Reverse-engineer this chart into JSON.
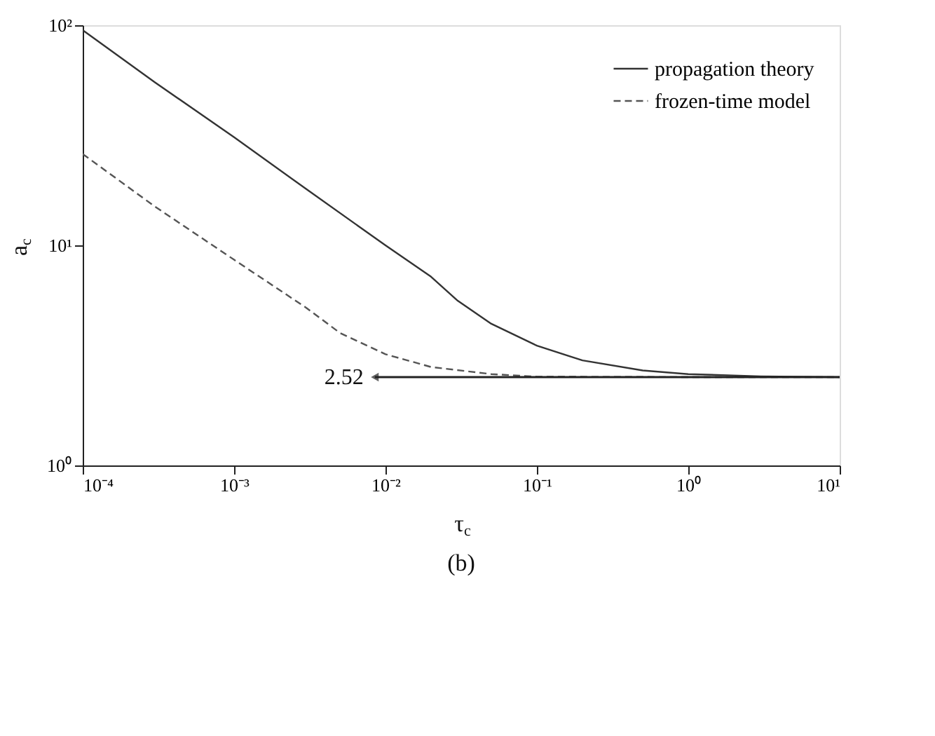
{
  "chart_data": {
    "type": "line",
    "xlabel": "τ$_{c}$",
    "ylabel": "a$_{c}$",
    "log": "xy",
    "xlim": [
      0.0001,
      10
    ],
    "ylim": [
      1,
      100
    ],
    "xticks": [
      {
        "value": 0.0001,
        "label": "10⁻⁴"
      },
      {
        "value": 0.001,
        "label": "10⁻³"
      },
      {
        "value": 0.01,
        "label": "10⁻²"
      },
      {
        "value": 0.1,
        "label": "10⁻¹"
      },
      {
        "value": 1,
        "label": "10⁰"
      },
      {
        "value": 10,
        "label": "10¹"
      }
    ],
    "yticks": [
      {
        "value": 1,
        "label": "10⁰"
      },
      {
        "value": 10,
        "label": "10¹"
      },
      {
        "value": 100,
        "label": "10²"
      }
    ],
    "legend": "top right",
    "grid": false,
    "series": [
      {
        "name": "propagation theory",
        "color": "#333333",
        "line_style": "solid",
        "x": [
          0.0001,
          0.0003,
          0.001,
          0.003,
          0.01,
          0.02,
          0.03,
          0.05,
          0.1,
          0.2,
          0.5,
          1,
          3,
          10
        ],
        "values": [
          95,
          55,
          31,
          18,
          10,
          7.2,
          5.6,
          4.4,
          3.5,
          3.0,
          2.7,
          2.6,
          2.54,
          2.52
        ]
      },
      {
        "name": "frozen-time model",
        "color": "#555555",
        "line_style": "dashed",
        "x": [
          0.0001,
          0.0003,
          0.001,
          0.003,
          0.005,
          0.01,
          0.02,
          0.05,
          0.1,
          1,
          10
        ],
        "values": [
          26,
          15,
          8.6,
          5.2,
          4.0,
          3.2,
          2.8,
          2.6,
          2.53,
          2.52,
          2.52
        ]
      }
    ],
    "annotations": [
      {
        "text": "2.52",
        "x": 0.0085,
        "y": 2.52
      },
      "(b)"
    ]
  }
}
